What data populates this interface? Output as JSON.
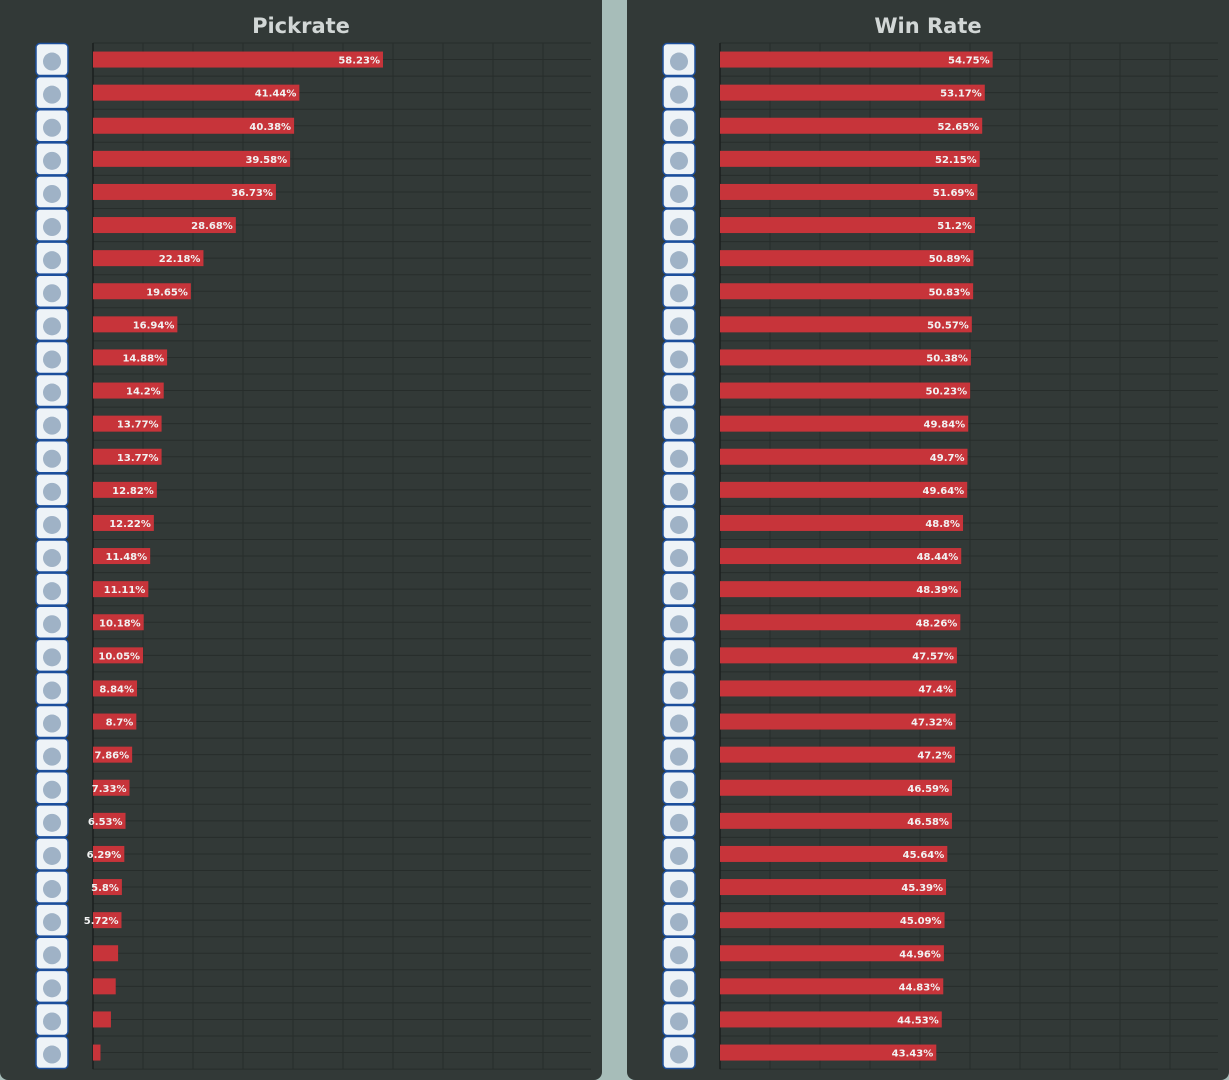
{
  "colors": {
    "background": "#a7bdb9",
    "panel": "#323937",
    "grid": "#272d2b",
    "bar": "#c7343a",
    "title": "#d2d7d6",
    "label": "#f2f2f2"
  },
  "chart_data": [
    {
      "type": "bar",
      "orientation": "horizontal",
      "title": "Pickrate",
      "unit": "%",
      "xlim": [
        0,
        100
      ],
      "grid": true,
      "icons": [
        "lucario-icon",
        "eldegoss-icon",
        "pikachu-icon",
        "venusaur-icon",
        "cinderace-icon",
        "talonflame-icon",
        "wigglytuff-icon",
        "greninja-icon",
        "machamp-icon",
        "gardevoir-icon",
        "dragonite-icon",
        "charizard-icon",
        "slowbro-icon",
        "greedent-icon",
        "blastoise-icon",
        "absol-icon",
        "zeraora-icon",
        "snorlax-icon",
        "blissey-icon",
        "lugia-icon",
        "decidueye-icon",
        "sylveon-icon",
        "alolan-ninetales-icon",
        "crustle-icon",
        "sceptile-icon",
        "trevenant-icon",
        "garchomp-icon",
        "mr-mime-icon",
        "cramorant-icon",
        "gengar-icon",
        "hoopa-icon"
      ],
      "values": [
        58.23,
        41.44,
        40.38,
        39.58,
        36.73,
        28.68,
        22.18,
        19.65,
        16.94,
        14.88,
        14.2,
        13.77,
        13.77,
        12.82,
        12.22,
        11.48,
        11.11,
        10.18,
        10.05,
        8.84,
        8.7,
        7.86,
        7.33,
        6.53,
        6.29,
        5.8,
        5.72,
        5.04,
        4.56,
        3.6,
        1.5
      ],
      "labels": [
        "58.23%",
        "41.44%",
        "40.38%",
        "39.58%",
        "36.73%",
        "28.68%",
        "22.18%",
        "19.65%",
        "16.94%",
        "14.88%",
        "14.2%",
        "13.77%",
        "13.77%",
        "12.82%",
        "12.22%",
        "11.48%",
        "11.11%",
        "10.18%",
        "10.05%",
        "8.84%",
        "8.7%",
        "7.86%",
        "7.33%",
        "6.53%",
        "6.29%",
        "5.8%",
        "5.72%",
        "",
        "",
        "",
        ""
      ]
    },
    {
      "type": "bar",
      "orientation": "horizontal",
      "title": "Win Rate",
      "unit": "%",
      "xlim": [
        0,
        100
      ],
      "grid": true,
      "icons": [
        "greedent-icon",
        "eldegoss-icon",
        "dragonite-icon",
        "slowbro-icon",
        "lucario-icon",
        "machamp-icon",
        "venusaur-icon",
        "cinderace-icon",
        "pikachu-icon",
        "charizard-icon",
        "garchomp-icon",
        "blastoise-icon",
        "talonflame-icon",
        "greninja-icon",
        "mr-mime-icon",
        "wigglytuff-icon",
        "gardevoir-icon",
        "blissey-icon",
        "cramorant-icon",
        "trevenant-icon",
        "zeraora-icon",
        "sylveon-icon",
        "lugia-icon",
        "crustle-icon",
        "snorlax-icon",
        "alolan-ninetales-icon",
        "decidueye-icon",
        "gengar-icon",
        "absol-icon",
        "sceptile-icon",
        "hoopa-icon"
      ],
      "values": [
        54.75,
        53.17,
        52.65,
        52.15,
        51.69,
        51.2,
        50.89,
        50.83,
        50.57,
        50.38,
        50.23,
        49.84,
        49.7,
        49.64,
        48.8,
        48.44,
        48.39,
        48.26,
        47.57,
        47.4,
        47.32,
        47.2,
        46.59,
        46.58,
        45.64,
        45.39,
        45.09,
        44.96,
        44.83,
        44.53,
        43.43
      ],
      "labels": [
        "54.75%",
        "53.17%",
        "52.65%",
        "52.15%",
        "51.69%",
        "51.2%",
        "50.89%",
        "50.83%",
        "50.57%",
        "50.38%",
        "50.23%",
        "49.84%",
        "49.7%",
        "49.64%",
        "48.8%",
        "48.44%",
        "48.39%",
        "48.26%",
        "47.57%",
        "47.4%",
        "47.32%",
        "47.2%",
        "46.59%",
        "46.58%",
        "45.64%",
        "45.39%",
        "45.09%",
        "44.96%",
        "44.83%",
        "44.53%",
        "43.43%"
      ]
    }
  ]
}
